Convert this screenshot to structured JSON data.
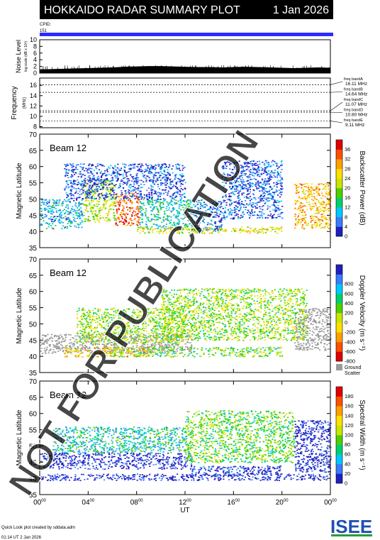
{
  "header": {
    "title": "HOKKAIDO RADAR SUMMARY PLOT",
    "date": "1 Jan 2026",
    "cpid_label": "CPID:",
    "cpid_value": "151"
  },
  "watermark": "NOT FOR PUBLICATION",
  "footer": {
    "credit": "Quick Look plot created by sddata.adm",
    "timestamp": "01:14 UT  2 Jan 2026",
    "logo": "ISEE"
  },
  "colors": {
    "header_bg": "#000000",
    "cpid_bar": "#2b2bff",
    "ground_scatter": "#9a9a9a",
    "logo_green": "#2a9a3a",
    "logo_blue": "#1e4fb5"
  },
  "chart_data": [
    {
      "type": "area",
      "panel": "noise",
      "ylabel": "Noise Level",
      "ylabel_sub": "log scale (dB x 10²)",
      "yticks": [
        "0",
        "2",
        "4",
        "6",
        "8",
        "10"
      ],
      "ylim": [
        0,
        10
      ],
      "x": [
        0,
        1,
        2,
        3,
        4,
        5,
        6,
        7,
        8,
        9,
        10,
        11,
        12,
        13,
        14,
        15,
        16,
        17,
        18,
        19,
        20,
        21,
        22,
        23,
        24
      ],
      "values": [
        1.1,
        1.2,
        1.3,
        1.4,
        1.5,
        1.6,
        1.7,
        1.9,
        2.0,
        2.1,
        2.1,
        2.0,
        1.9,
        1.8,
        1.8,
        1.7,
        1.8,
        1.9,
        1.8,
        1.7,
        1.6,
        1.5,
        1.6,
        1.7,
        1.6
      ]
    },
    {
      "type": "line",
      "panel": "frequency",
      "ylabel": "Frequency",
      "ylabel_sub": "(MHz)",
      "yticks": [
        "8",
        "10",
        "12",
        "14",
        "16"
      ],
      "ylim": [
        7.8,
        17.4
      ],
      "bands": [
        {
          "name": "freq bandA",
          "value_label": "16.11 MHz",
          "mhz": 16.11
        },
        {
          "name": "freq bandB",
          "value_label": "14.64 MHz",
          "mhz": 14.64
        },
        {
          "name": "freq bandC",
          "value_label": "11.07 MHz",
          "mhz": 11.07
        },
        {
          "name": "freq bandD",
          "value_label": "10.80 MHz",
          "mhz": 10.8
        },
        {
          "name": "freq bandE",
          "value_label": "9.11 MHz",
          "mhz": 9.11
        }
      ]
    },
    {
      "type": "heatmap",
      "panel": "power",
      "beam_label": "Beam 12",
      "ylabel": "Magnetic Latitude",
      "ylim": [
        35,
        70
      ],
      "yticks": [
        "35",
        "40",
        "45",
        "50",
        "55",
        "60",
        "65",
        "70"
      ],
      "colorbar_label": "Backscatter Power (dB)",
      "colorbar_ticks": [
        "0",
        "4",
        "8",
        "12",
        "16",
        "20",
        "24",
        "28",
        "32",
        "36"
      ],
      "colorbar_colors": [
        "#2020c0",
        "#3a7cff",
        "#00c8ff",
        "#00d070",
        "#4fcf00",
        "#c8e600",
        "#ffe000",
        "#ffa000",
        "#ff5000",
        "#e00000"
      ],
      "scatter_regions": [
        {
          "t0": 0,
          "t1": 3.5,
          "lat0": 41,
          "lat1": 50,
          "level": 0.25
        },
        {
          "t0": 3.5,
          "t1": 6.2,
          "lat0": 43,
          "lat1": 56,
          "level": 0.55
        },
        {
          "t0": 6.2,
          "t1": 8.2,
          "lat0": 42,
          "lat1": 52,
          "level": 0.85
        },
        {
          "t0": 8.2,
          "t1": 12.5,
          "lat0": 41,
          "lat1": 50,
          "level": 0.3
        },
        {
          "t0": 12.5,
          "t1": 15.0,
          "lat0": 40,
          "lat1": 50,
          "level": 0.15
        },
        {
          "t0": 15.0,
          "t1": 20.0,
          "lat0": 44,
          "lat1": 62,
          "level": 0.1
        },
        {
          "t0": 21.0,
          "t1": 24,
          "lat0": 41,
          "lat1": 55,
          "level": 0.7
        },
        {
          "t0": 8.0,
          "t1": 20.0,
          "lat0": 39.5,
          "lat1": 41.5,
          "level": 0.6
        },
        {
          "t0": 2.0,
          "t1": 12.0,
          "lat0": 50,
          "lat1": 61,
          "level": 0.08
        }
      ]
    },
    {
      "type": "heatmap",
      "panel": "velocity",
      "beam_label": "Beam 12",
      "ylabel": "Magnetic Latitude",
      "ylim": [
        35,
        70
      ],
      "yticks": [
        "35",
        "40",
        "45",
        "50",
        "55",
        "60",
        "65",
        "70"
      ],
      "colorbar_label": "Doppler Velocity (m s⁻¹)",
      "colorbar_ticks": [
        "-800",
        "-600",
        "-400",
        "-200",
        "0",
        "200",
        "400",
        "600",
        "800"
      ],
      "colorbar_colors": [
        "#e00000",
        "#ff5000",
        "#ffa000",
        "#ffe000",
        "#c8e600",
        "#4fcf00",
        "#00d070",
        "#00c8ff",
        "#3a7cff",
        "#2020c0"
      ],
      "ground_scatter_label": "Ground Scatter",
      "scatter_regions": [
        {
          "t0": 0,
          "t1": 12.5,
          "lat0": 41,
          "lat1": 47,
          "level": -1
        },
        {
          "t0": 3.0,
          "t1": 12.0,
          "lat0": 44,
          "lat1": 55,
          "level": 0.5
        },
        {
          "t0": 6.0,
          "t1": 20.0,
          "lat0": 40,
          "lat1": 43,
          "level": 0.55
        },
        {
          "t0": 21.0,
          "t1": 24,
          "lat0": 42,
          "lat1": 55,
          "level": -1
        },
        {
          "t0": 10.0,
          "t1": 22.0,
          "lat0": 45,
          "lat1": 61,
          "level": 0.5
        },
        {
          "t0": 2.0,
          "t1": 9.0,
          "lat0": 40,
          "lat1": 43,
          "level": 0.35
        }
      ]
    },
    {
      "type": "heatmap",
      "panel": "width",
      "beam_label": "Beam 12",
      "ylabel": "Magnetic Latitude",
      "ylim": [
        35,
        70
      ],
      "yticks": [
        "35",
        "40",
        "45",
        "50",
        "55",
        "60",
        "65",
        "70"
      ],
      "colorbar_label": "Spectral Width (m s⁻¹)",
      "colorbar_ticks": [
        "0",
        "20",
        "40",
        "60",
        "80",
        "100",
        "120",
        "140",
        "160",
        "180"
      ],
      "colorbar_colors": [
        "#2020c0",
        "#3a7cff",
        "#00c8ff",
        "#00d070",
        "#4fcf00",
        "#c8e600",
        "#ffe000",
        "#ffa000",
        "#ff5000",
        "#e00000"
      ],
      "xlabel": "UT",
      "xticks": [
        "00",
        "04",
        "08",
        "12",
        "16",
        "20",
        "00"
      ],
      "scatter_regions": [
        {
          "t0": 0,
          "t1": 12.5,
          "lat0": 43,
          "lat1": 48,
          "level": 0.02
        },
        {
          "t0": 1.0,
          "t1": 12.0,
          "lat0": 48,
          "lat1": 56,
          "level": 0.3
        },
        {
          "t0": 0,
          "t1": 24,
          "lat0": 39.5,
          "lat1": 41.5,
          "level": 0.02
        },
        {
          "t0": 21.0,
          "t1": 24,
          "lat0": 42,
          "lat1": 58,
          "level": 0.02
        },
        {
          "t0": 12.0,
          "t1": 21.0,
          "lat0": 45,
          "lat1": 61,
          "level": 0.45
        },
        {
          "t0": 12.5,
          "t1": 20.0,
          "lat0": 41,
          "lat1": 44,
          "level": 0.05
        }
      ]
    }
  ]
}
